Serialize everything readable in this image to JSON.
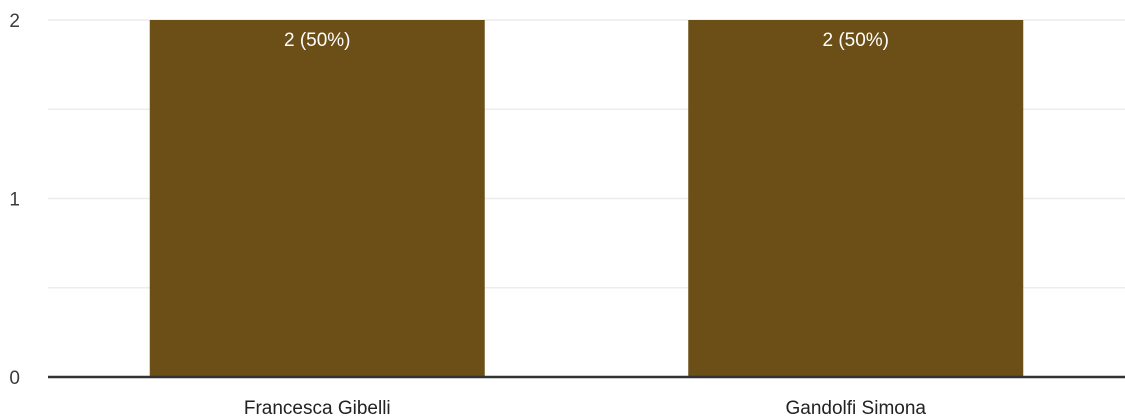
{
  "chart_data": {
    "type": "bar",
    "title": "",
    "xlabel": "",
    "ylabel": "",
    "categories": [
      "Francesca Gibelli",
      "Gandolfi Simona"
    ],
    "values": [
      2,
      2
    ],
    "data_labels": [
      "2 (50%)",
      "2 (50%)"
    ],
    "ylim": [
      0,
      2
    ],
    "y_ticks": [
      "0",
      "1",
      "2"
    ],
    "grid": true,
    "bar_color": "#6b4f16",
    "grid_color": "#ececec",
    "axis_color": "#333333"
  }
}
